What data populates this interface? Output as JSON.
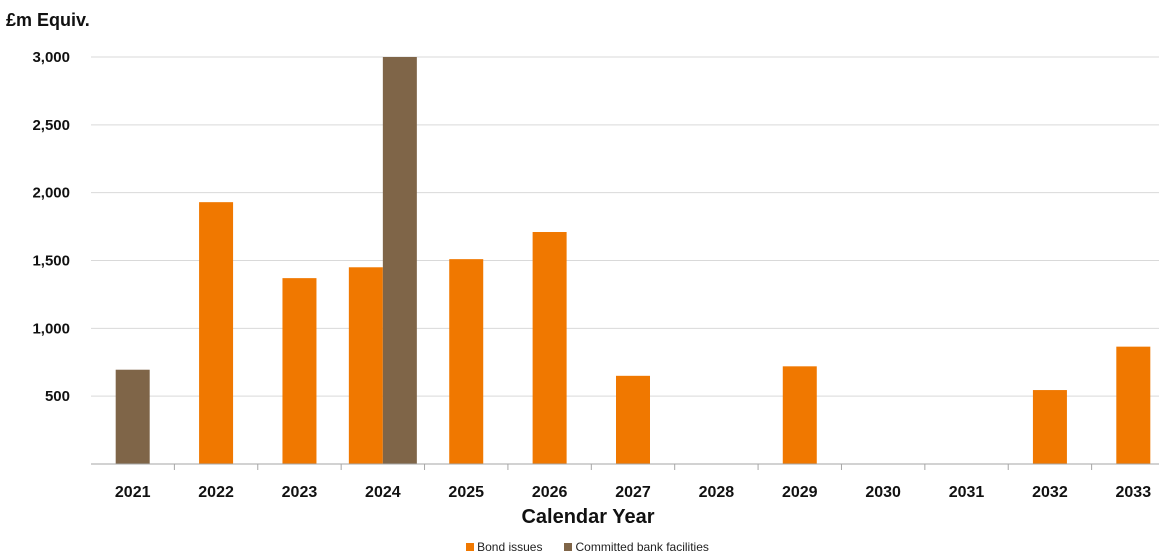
{
  "chart_data": {
    "type": "bar",
    "title": "",
    "ylabel": "£m Equiv.",
    "xlabel": "Calendar Year",
    "ylim": [
      0,
      3000
    ],
    "yticks": [
      500,
      1000,
      1500,
      2000,
      2500,
      3000
    ],
    "ytick_labels": [
      "500",
      "1,000",
      "1,500",
      "2,000",
      "2,500",
      "3,000"
    ],
    "grid": true,
    "legend_position": "bottom-center",
    "categories": [
      "2021",
      "2022",
      "2023",
      "2024",
      "2025",
      "2026",
      "2027",
      "2028",
      "2029",
      "2030",
      "2031",
      "2032",
      "2033"
    ],
    "series": [
      {
        "name": "Bond issues",
        "color": "#f07800",
        "values": [
          0,
          1930,
          1370,
          1450,
          1510,
          1710,
          650,
          0,
          720,
          0,
          0,
          545,
          865
        ]
      },
      {
        "name": "Committed bank facilities",
        "color": "#7f6548",
        "values": [
          695,
          0,
          0,
          3000,
          0,
          0,
          0,
          0,
          0,
          0,
          0,
          0,
          0
        ]
      }
    ]
  }
}
